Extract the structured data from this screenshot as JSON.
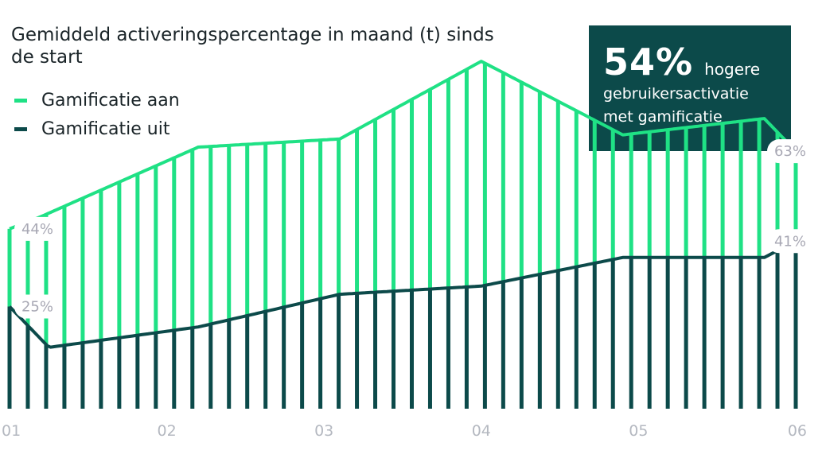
{
  "chart_data": {
    "type": "bar",
    "title": "Gemiddeld activeringspercentage in maand (t) sinds de start",
    "x_ticks": [
      "01",
      "02",
      "03",
      "04",
      "05",
      "06"
    ],
    "ylim": [
      0,
      100
    ],
    "series": [
      {
        "name": "Gamificatie aan",
        "color": "#1fe185",
        "points": [
          {
            "x": 1.0,
            "y": 44
          },
          {
            "x": 1.2,
            "y": 47
          },
          {
            "x": 2.2,
            "y": 64
          },
          {
            "x": 3.1,
            "y": 66
          },
          {
            "x": 4.0,
            "y": 85
          },
          {
            "x": 4.9,
            "y": 67
          },
          {
            "x": 5.8,
            "y": 71
          },
          {
            "x": 6.0,
            "y": 63
          }
        ]
      },
      {
        "name": "Gamificatie uit",
        "color": "#0c4a4a",
        "points": [
          {
            "x": 1.0,
            "y": 25
          },
          {
            "x": 1.25,
            "y": 15
          },
          {
            "x": 2.2,
            "y": 20
          },
          {
            "x": 3.1,
            "y": 28
          },
          {
            "x": 4.0,
            "y": 30
          },
          {
            "x": 4.9,
            "y": 37
          },
          {
            "x": 5.8,
            "y": 37
          },
          {
            "x": 6.0,
            "y": 41
          }
        ]
      }
    ],
    "data_labels": [
      {
        "series": 0,
        "x": 1,
        "text": "44%"
      },
      {
        "series": 1,
        "x": 1,
        "text": "25%"
      },
      {
        "series": 0,
        "x": 6,
        "text": "63%"
      },
      {
        "series": 1,
        "x": 6,
        "text": "41%"
      }
    ],
    "grid": false,
    "legend": "top-left"
  },
  "callout": {
    "big": "54%",
    "line1": "hogere",
    "line2": "gebruikersactivatie",
    "line3": "met gamificatie",
    "bg_color": "#0c4a4a"
  }
}
